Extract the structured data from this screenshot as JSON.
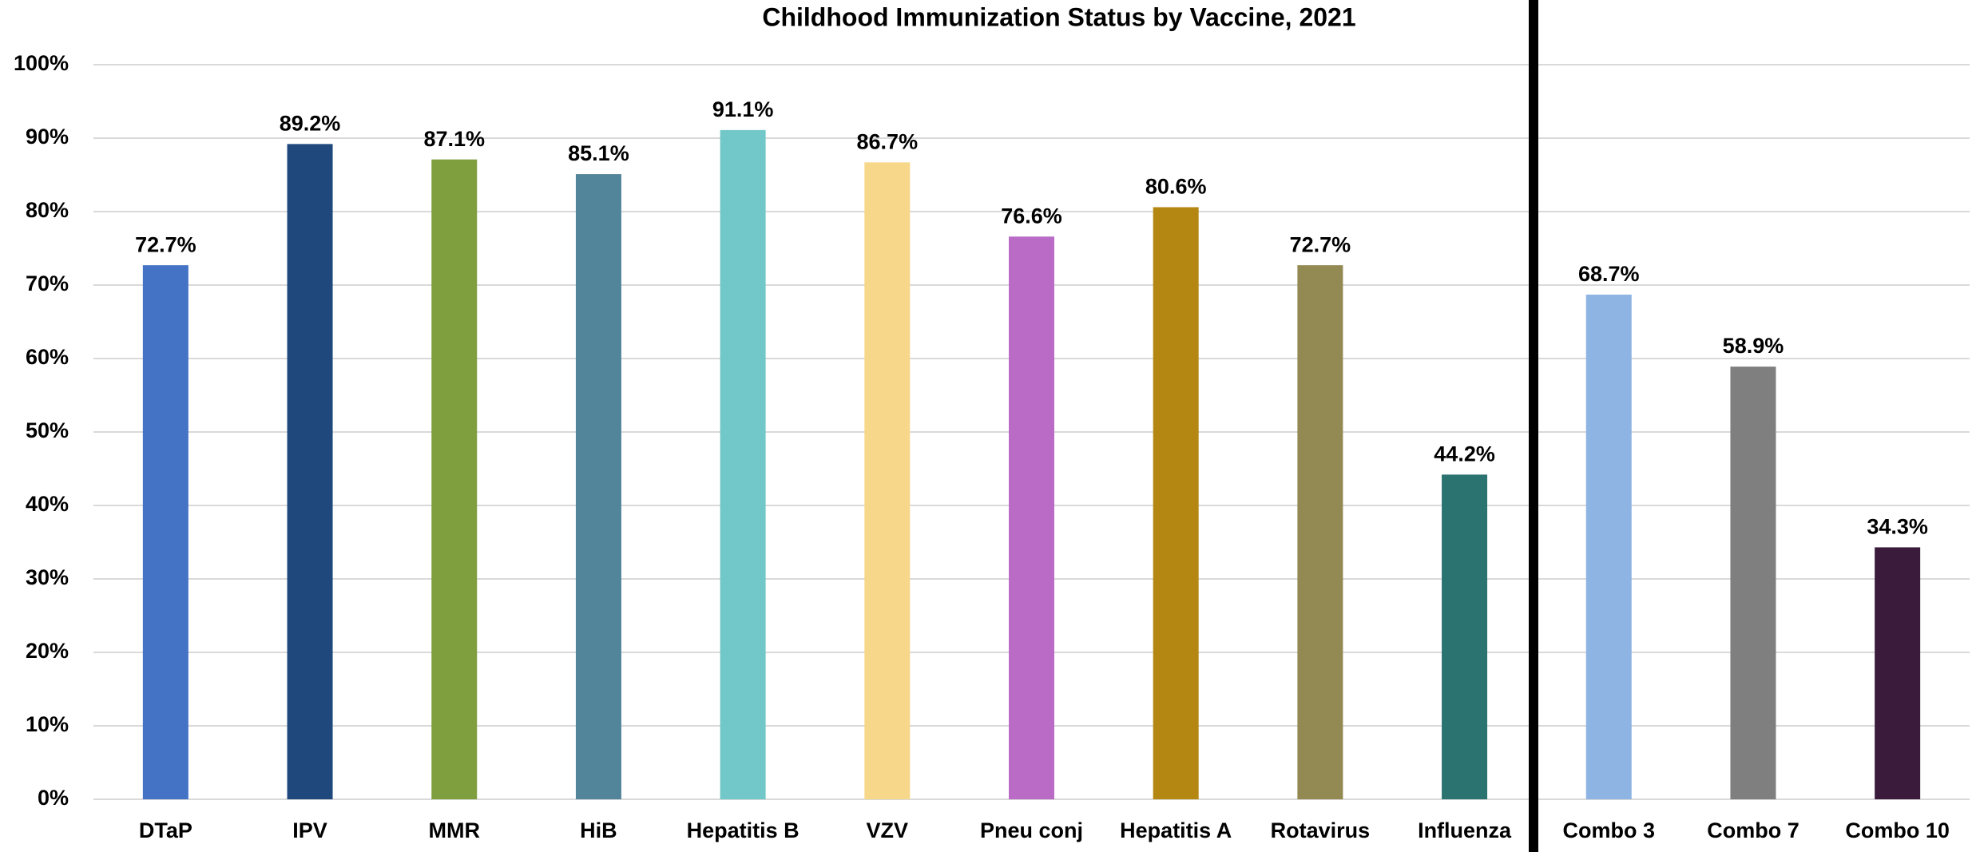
{
  "chart_data": {
    "type": "bar",
    "title": "Childhood Immunization Status by Vaccine, 2021",
    "categories": [
      "DTaP",
      "IPV",
      "MMR",
      "HiB",
      "Hepatitis B",
      "VZV",
      "Pneu conj",
      "Hepatitis A",
      "Rotavirus",
      "Influenza",
      "Combo 3",
      "Combo 7",
      "Combo 10"
    ],
    "values": [
      72.7,
      89.2,
      87.1,
      85.1,
      91.1,
      86.7,
      76.6,
      80.6,
      72.7,
      44.2,
      68.7,
      58.9,
      34.3
    ],
    "value_labels": [
      "72.7%",
      "89.2%",
      "87.1%",
      "85.1%",
      "91.1%",
      "86.7%",
      "76.6%",
      "80.6%",
      "72.7%",
      "44.2%",
      "68.7%",
      "58.9%",
      "34.3%"
    ],
    "colors": [
      "#4472c4",
      "#1f497d",
      "#7f9f3f",
      "#52849a",
      "#72c8c8",
      "#f7d78a",
      "#b96bc6",
      "#b38711",
      "#938953",
      "#2a7370",
      "#8eb4e3",
      "#7f7f7f",
      "#3a1b3c"
    ],
    "ylim": [
      0,
      100
    ],
    "yticks": [
      {
        "value": 0,
        "label": "0%"
      },
      {
        "value": 10,
        "label": "10%"
      },
      {
        "value": 20,
        "label": "20%"
      },
      {
        "value": 30,
        "label": "30%"
      },
      {
        "value": 40,
        "label": "40%"
      },
      {
        "value": 50,
        "label": "50%"
      },
      {
        "value": 60,
        "label": "60%"
      },
      {
        "value": 70,
        "label": "70%"
      },
      {
        "value": 80,
        "label": "80%"
      },
      {
        "value": 90,
        "label": "90%"
      },
      {
        "value": 100,
        "label": "100%"
      }
    ],
    "grid": true
  }
}
